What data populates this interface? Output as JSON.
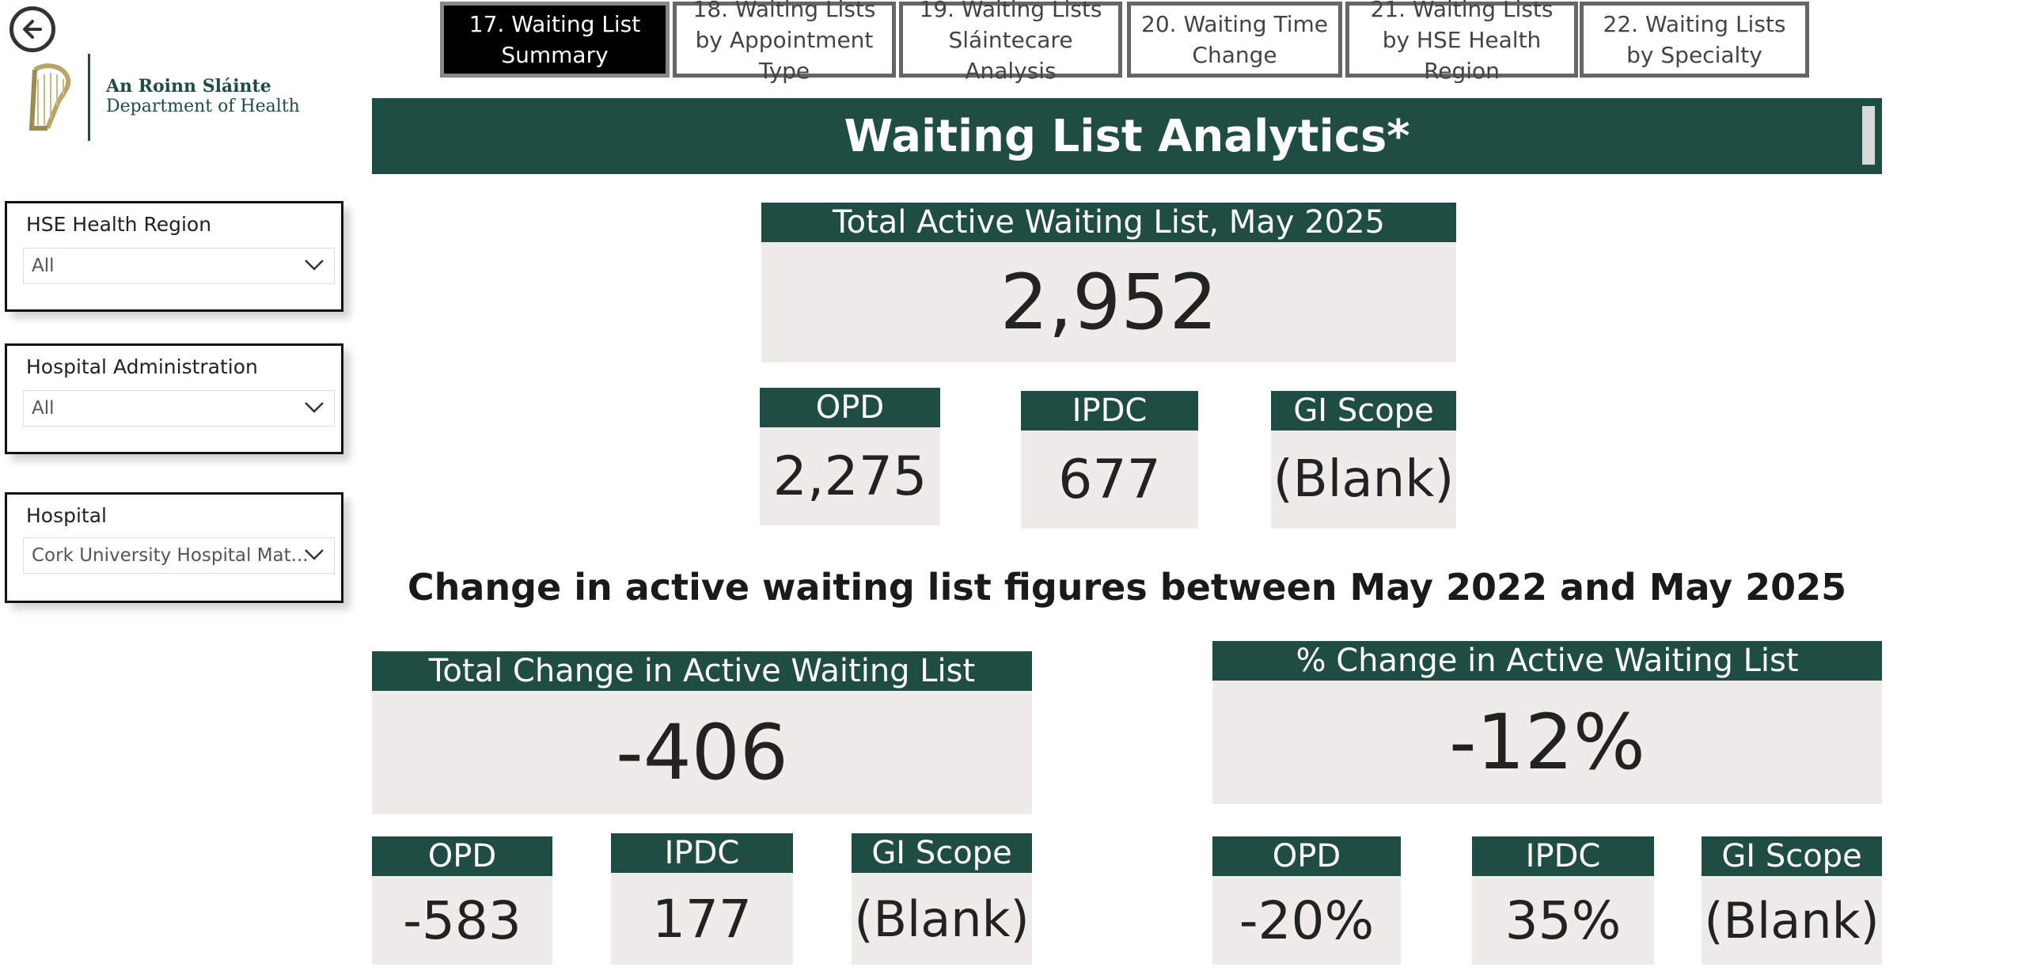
{
  "nav": {
    "tabs": [
      {
        "label": "17. Waiting List Summary",
        "active": true
      },
      {
        "label": "18. Waiting Lists by Appointment Type",
        "active": false
      },
      {
        "label": "19. Waiting Lists Sláintecare Analysis",
        "active": false
      },
      {
        "label": "20. Waiting Time Change",
        "active": false
      },
      {
        "label": "21. Waiting Lists by HSE Health Region",
        "active": false
      },
      {
        "label": "22. Waiting Lists by Specialty",
        "active": false
      }
    ]
  },
  "logo": {
    "line1": "An Roinn Sláinte",
    "line2": "Department of Health"
  },
  "header": {
    "title": "Waiting List Analytics*"
  },
  "slicers": [
    {
      "label": "HSE Health Region",
      "value": "All"
    },
    {
      "label": "Hospital Administration",
      "value": "All"
    },
    {
      "label": "Hospital",
      "value": "Cork University Hospital Mat..."
    }
  ],
  "total": {
    "title": "Total Active Waiting List, May 2025",
    "value": "2,952",
    "breakdown": [
      {
        "label": "OPD",
        "value": "2,275"
      },
      {
        "label": "IPDC",
        "value": "677"
      },
      {
        "label": "GI Scope",
        "value": "(Blank)"
      }
    ]
  },
  "change_section": {
    "title": "Change in active waiting list figures between May 2022 and May 2025"
  },
  "total_change": {
    "title": "Total Change in Active Waiting List",
    "value": "-406",
    "breakdown": [
      {
        "label": "OPD",
        "value": "-583"
      },
      {
        "label": "IPDC",
        "value": "177"
      },
      {
        "label": "GI Scope",
        "value": "(Blank)"
      }
    ]
  },
  "pct_change": {
    "title": "% Change in Active Waiting List",
    "value": "-12%",
    "breakdown": [
      {
        "label": "OPD",
        "value": "-20%"
      },
      {
        "label": "IPDC",
        "value": "35%"
      },
      {
        "label": "GI Scope",
        "value": "(Blank)"
      }
    ]
  },
  "colors": {
    "brand_green": "#1f4d44",
    "card_bg": "#edece8",
    "active_tab": "#000000"
  }
}
